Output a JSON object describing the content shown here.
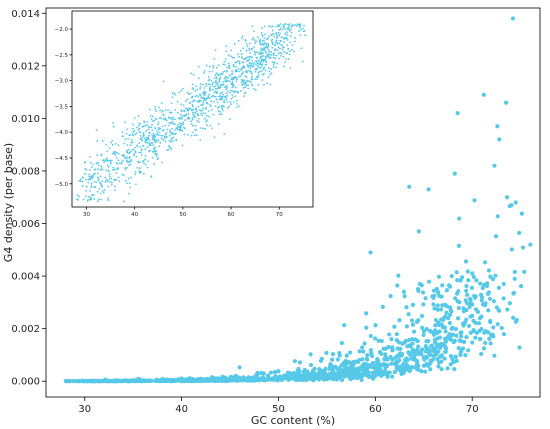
{
  "chart_data": [
    {
      "type": "scatter",
      "role": "main",
      "xlabel": "GC content (%)",
      "ylabel": "G4 density (per base)",
      "xlim": [
        26,
        77
      ],
      "ylim": [
        -0.0006,
        0.0142
      ],
      "x_ticks": [
        30,
        40,
        50,
        60,
        70
      ],
      "y_ticks": [
        0.0,
        0.002,
        0.004,
        0.006,
        0.008,
        0.01,
        0.012,
        0.014
      ],
      "y_tick_labels": [
        "0.000",
        "0.002",
        "0.004",
        "0.006",
        "0.008",
        "0.010",
        "0.012",
        "0.014"
      ],
      "point_color": "#56c8e8",
      "grid": false,
      "points_generated": true,
      "points_count": 1300,
      "trend": {
        "model": "exponential",
        "y_at_x30": 2e-05,
        "y_at_x70": 0.0022
      },
      "highlight_points": [
        [
          74.2,
          0.0138
        ],
        [
          71.2,
          0.0109
        ],
        [
          73.5,
          0.0106
        ],
        [
          68.5,
          0.0102
        ],
        [
          72.6,
          0.0097
        ],
        [
          72.8,
          0.0092
        ],
        [
          72.3,
          0.0082
        ],
        [
          68.2,
          0.0079
        ],
        [
          63.5,
          0.0074
        ],
        [
          65.5,
          0.0073
        ],
        [
          73.6,
          0.007
        ],
        [
          74.5,
          0.0068
        ],
        [
          76.0,
          0.0052
        ],
        [
          59.5,
          0.0049
        ],
        [
          64.5,
          0.0057
        ]
      ]
    },
    {
      "type": "scatter",
      "role": "inset",
      "xlabel": "",
      "ylabel": "",
      "xlim": [
        27,
        77
      ],
      "ylim": [
        -5.45,
        -1.65
      ],
      "x_ticks": [
        30,
        40,
        50,
        60,
        70
      ],
      "y_ticks": [
        -2.0,
        -2.5,
        -3.0,
        -3.5,
        -4.0,
        -4.5,
        -5.0
      ],
      "y_tick_labels": [
        "−2.0",
        "−2.5",
        "−3.0",
        "−3.5",
        "−4.0",
        "−4.5",
        "−5.0"
      ],
      "point_color": "#56c8e8",
      "grid": false,
      "points_generated": true,
      "points_count": 1300,
      "trend": {
        "model": "linear",
        "y_at_x30": -5.0,
        "y_at_x74": -2.1
      }
    }
  ]
}
